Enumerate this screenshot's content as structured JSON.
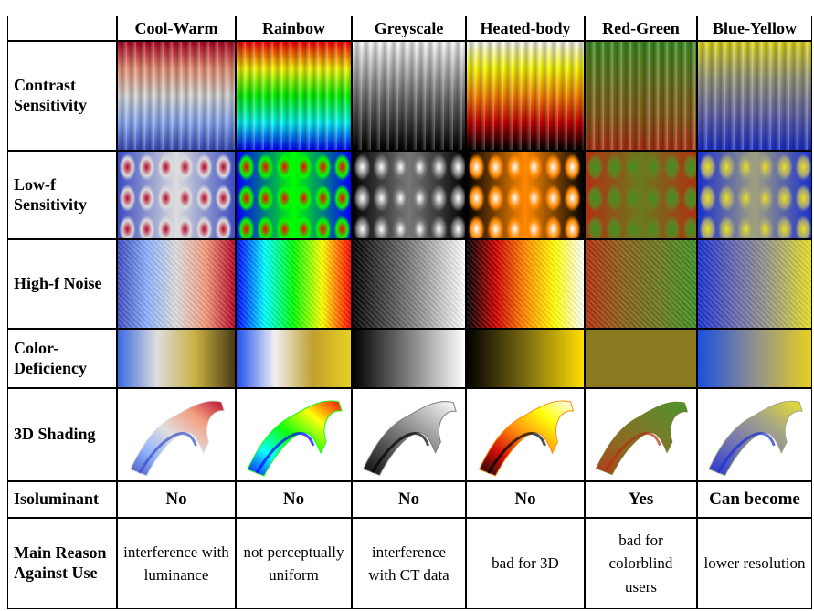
{
  "header": {
    "columns": [
      "Cool-Warm",
      "Rainbow",
      "Greyscale",
      "Heated-body",
      "Red-Green",
      "Blue-Yellow"
    ]
  },
  "rows": [
    {
      "label": "Contrast Sensitivity"
    },
    {
      "label": "Low-f Sensitivity"
    },
    {
      "label": "High-f Noise"
    },
    {
      "label": "Color-Deficiency"
    },
    {
      "label": "3D Shading"
    },
    {
      "label": "Isoluminant",
      "values": [
        "No",
        "No",
        "No",
        "No",
        "Yes",
        "Can become"
      ]
    },
    {
      "label": "Main Reason Against Use",
      "values": [
        "interference with luminance",
        "not perceptually uniform",
        "interference with CT data",
        "bad for 3D",
        "bad for colorblind users",
        "lower resolution"
      ]
    }
  ]
}
